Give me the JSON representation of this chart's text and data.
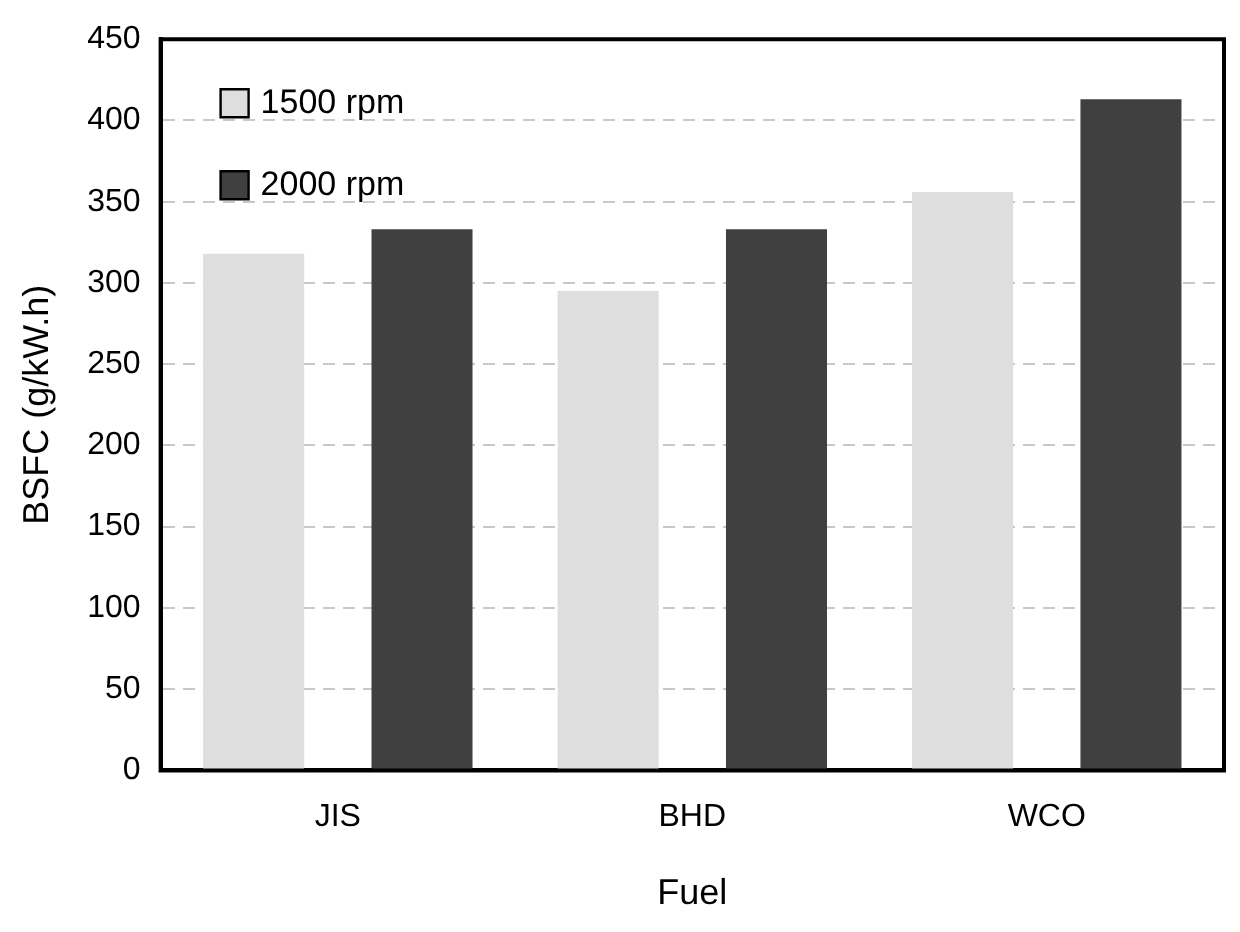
{
  "chart_data": {
    "type": "bar",
    "xlabel": "Fuel",
    "ylabel": "BSFC (g/kW.h)",
    "categories": [
      "JIS",
      "BHD",
      "WCO"
    ],
    "series": [
      {
        "name": "1500 rpm",
        "color": "#dedede",
        "values": [
          318,
          295,
          356
        ]
      },
      {
        "name": "2000 rpm",
        "color": "#404040",
        "values": [
          333,
          333,
          413
        ]
      }
    ],
    "ylim": [
      0,
      450
    ],
    "yticks": [
      0,
      50,
      100,
      150,
      200,
      250,
      300,
      350,
      400,
      450
    ],
    "grid": "y",
    "legend": "top left"
  }
}
